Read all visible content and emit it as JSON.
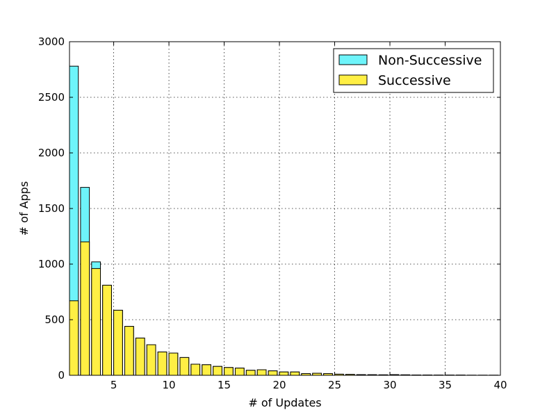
{
  "chart_data": {
    "type": "bar",
    "title": "",
    "xlabel": "# of Updates",
    "ylabel": "# of Apps",
    "xlim": [
      1,
      40
    ],
    "ylim": [
      0,
      3000
    ],
    "xticks": [
      5,
      10,
      15,
      20,
      25,
      30,
      35,
      40
    ],
    "yticks": [
      0,
      500,
      1000,
      1500,
      2000,
      2500,
      3000
    ],
    "grid": true,
    "legend_position": "top-right",
    "x": [
      1,
      2,
      3,
      4,
      5,
      6,
      7,
      8,
      9,
      10,
      11,
      12,
      13,
      14,
      15,
      16,
      17,
      18,
      19,
      20,
      21,
      22,
      23,
      24,
      25,
      26,
      27,
      28,
      29,
      30,
      31,
      32,
      33,
      34,
      35,
      36,
      37,
      38,
      39
    ],
    "series": [
      {
        "name": "Non-Successive",
        "color": "#6ef4fa",
        "values": [
          2780,
          1690,
          1020,
          810,
          585,
          440,
          335,
          275,
          210,
          200,
          160,
          100,
          95,
          80,
          70,
          65,
          45,
          50,
          40,
          30,
          30,
          15,
          18,
          15,
          10,
          8,
          6,
          5,
          4,
          6,
          4,
          3,
          3,
          2,
          2,
          2,
          1,
          1,
          1
        ]
      },
      {
        "name": "Successive",
        "color": "#ffef44",
        "values": [
          670,
          1200,
          960,
          810,
          585,
          440,
          335,
          275,
          210,
          200,
          160,
          100,
          95,
          80,
          70,
          65,
          45,
          50,
          40,
          30,
          30,
          15,
          18,
          15,
          10,
          8,
          6,
          5,
          4,
          6,
          4,
          3,
          3,
          2,
          2,
          2,
          1,
          1,
          1
        ]
      }
    ]
  }
}
